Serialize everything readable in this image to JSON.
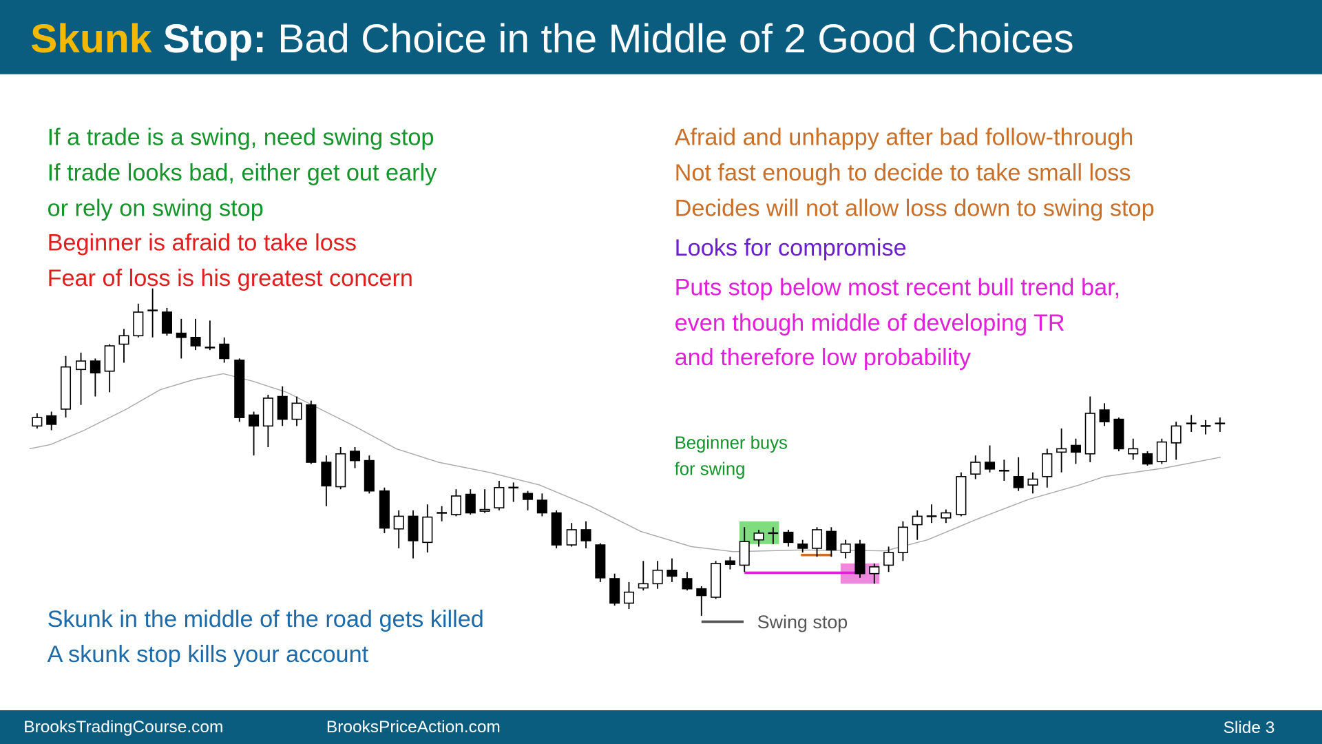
{
  "header": {
    "title_highlight": "Skunk",
    "title_bold": "Stop:",
    "title_rest": "Bad Choice in the Middle of 2 Good Choices"
  },
  "left_notes": [
    "If a trade is a swing, need swing stop",
    "If trade looks bad, either get out early",
    "or rely on swing stop",
    "Beginner is afraid to take loss",
    "Fear of loss is his greatest concern"
  ],
  "right_notes": [
    "Afraid and unhappy after bad follow-through",
    "Not fast enough to decide to take small loss",
    "Decides will not allow loss down to swing stop",
    "Looks for compromise",
    "Puts stop below most recent bull trend bar,",
    "even though middle of developing TR",
    "and therefore low probability"
  ],
  "annotations": {
    "buy_line1": "Beginner buys",
    "buy_line2": "for swing",
    "swing_stop": "Swing stop"
  },
  "bottom_notes": [
    "Skunk in the middle of the road gets killed",
    "A skunk stop kills your account"
  ],
  "footer": {
    "site1": "BrooksTradingCourse.com",
    "site2": "BrooksPriceAction.com",
    "slide": "Slide 3"
  }
}
